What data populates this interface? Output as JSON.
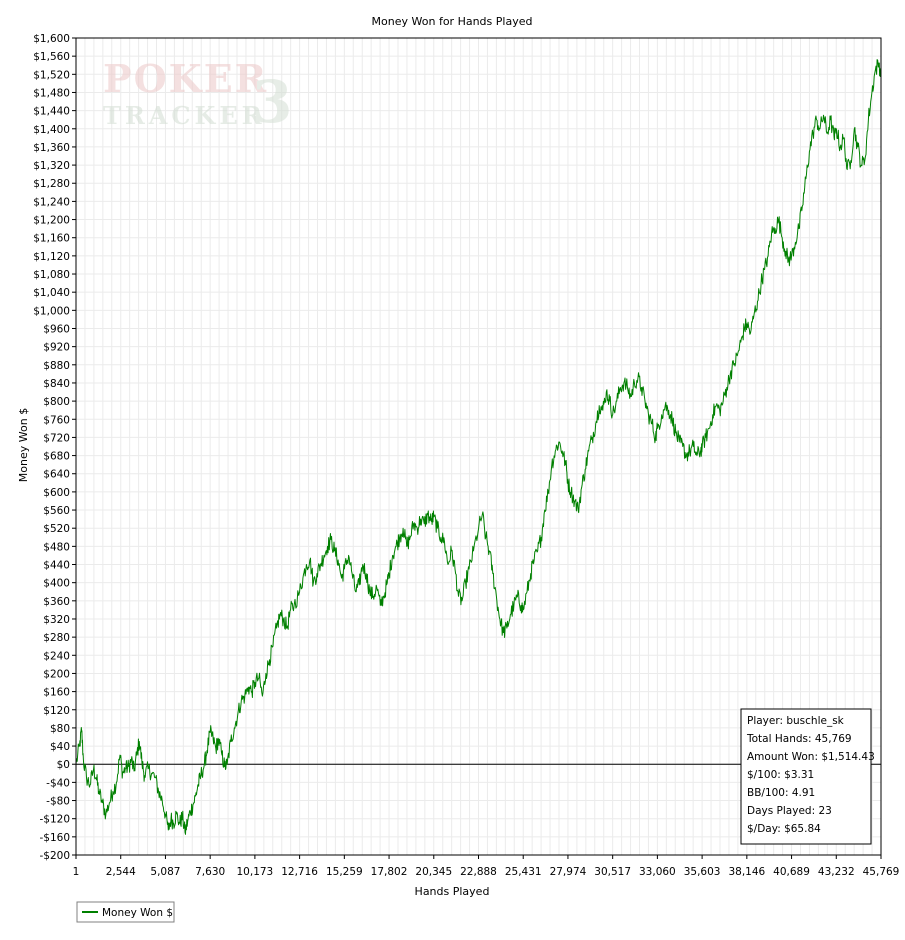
{
  "chart_data": {
    "type": "line",
    "title": "Money Won for Hands Played",
    "xlabel": "Hands Played",
    "ylabel": "Money Won $",
    "xlim": [
      1,
      45769
    ],
    "ylim": [
      -200,
      1600
    ],
    "grid": true,
    "y_tick_step": 40,
    "x_tick_labels": [
      "1",
      "2,544",
      "5,087",
      "7,630",
      "10,173",
      "12,716",
      "15,259",
      "17,802",
      "20,345",
      "22,888",
      "25,431",
      "27,974",
      "30,517",
      "33,060",
      "35,603",
      "38,146",
      "40,689",
      "43,232",
      "45,769"
    ],
    "legend_position": "bottom-left",
    "series": [
      {
        "name": "Money Won $",
        "color": "#008000",
        "points": [
          [
            1,
            0
          ],
          [
            200,
            40
          ],
          [
            320,
            75
          ],
          [
            420,
            10
          ],
          [
            600,
            -30
          ],
          [
            800,
            -45
          ],
          [
            1000,
            -10
          ],
          [
            1150,
            -30
          ],
          [
            1300,
            -60
          ],
          [
            1500,
            -85
          ],
          [
            1700,
            -110
          ],
          [
            1900,
            -85
          ],
          [
            2100,
            -60
          ],
          [
            2300,
            -40
          ],
          [
            2500,
            20
          ],
          [
            2650,
            -20
          ],
          [
            2800,
            -10
          ],
          [
            3000,
            -5
          ],
          [
            3150,
            10
          ],
          [
            3300,
            -15
          ],
          [
            3450,
            20
          ],
          [
            3600,
            50
          ],
          [
            3750,
            5
          ],
          [
            3900,
            -25
          ],
          [
            4100,
            -10
          ],
          [
            4300,
            -20
          ],
          [
            4500,
            -30
          ],
          [
            4700,
            -60
          ],
          [
            4900,
            -80
          ],
          [
            5087,
            -110
          ],
          [
            5250,
            -145
          ],
          [
            5400,
            -120
          ],
          [
            5550,
            -130
          ],
          [
            5700,
            -110
          ],
          [
            5900,
            -130
          ],
          [
            6050,
            -115
          ],
          [
            6200,
            -150
          ],
          [
            6350,
            -125
          ],
          [
            6500,
            -105
          ],
          [
            6650,
            -90
          ],
          [
            6800,
            -70
          ],
          [
            6950,
            -45
          ],
          [
            7100,
            -25
          ],
          [
            7300,
            0
          ],
          [
            7450,
            30
          ],
          [
            7630,
            70
          ],
          [
            7800,
            55
          ],
          [
            7950,
            35
          ],
          [
            8100,
            55
          ],
          [
            8300,
            20
          ],
          [
            8450,
            -5
          ],
          [
            8600,
            0
          ],
          [
            8800,
            50
          ],
          [
            9000,
            80
          ],
          [
            9200,
            110
          ],
          [
            9400,
            140
          ],
          [
            9600,
            150
          ],
          [
            9800,
            170
          ],
          [
            10000,
            160
          ],
          [
            10173,
            180
          ],
          [
            10400,
            190
          ],
          [
            10600,
            150
          ],
          [
            10800,
            200
          ],
          [
            11000,
            230
          ],
          [
            11200,
            260
          ],
          [
            11400,
            300
          ],
          [
            11600,
            330
          ],
          [
            11800,
            320
          ],
          [
            12000,
            300
          ],
          [
            12200,
            340
          ],
          [
            12400,
            350
          ],
          [
            12716,
            380
          ],
          [
            12900,
            410
          ],
          [
            13100,
            440
          ],
          [
            13300,
            450
          ],
          [
            13500,
            400
          ],
          [
            13700,
            420
          ],
          [
            13900,
            440
          ],
          [
            14100,
            460
          ],
          [
            14300,
            480
          ],
          [
            14500,
            495
          ],
          [
            14700,
            470
          ],
          [
            14900,
            450
          ],
          [
            15100,
            410
          ],
          [
            15259,
            430
          ],
          [
            15500,
            460
          ],
          [
            15700,
            420
          ],
          [
            15900,
            380
          ],
          [
            16100,
            395
          ],
          [
            16300,
            440
          ],
          [
            16500,
            420
          ],
          [
            16700,
            380
          ],
          [
            16900,
            370
          ],
          [
            17100,
            390
          ],
          [
            17300,
            350
          ],
          [
            17500,
            370
          ],
          [
            17700,
            400
          ],
          [
            17802,
            420
          ],
          [
            18000,
            460
          ],
          [
            18200,
            480
          ],
          [
            18400,
            500
          ],
          [
            18600,
            520
          ],
          [
            18800,
            480
          ],
          [
            19000,
            500
          ],
          [
            19200,
            530
          ],
          [
            19400,
            520
          ],
          [
            19600,
            540
          ],
          [
            19800,
            530
          ],
          [
            20000,
            550
          ],
          [
            20200,
            535
          ],
          [
            20345,
            545
          ],
          [
            20550,
            520
          ],
          [
            20750,
            500
          ],
          [
            20950,
            490
          ],
          [
            21150,
            440
          ],
          [
            21350,
            470
          ],
          [
            21550,
            430
          ],
          [
            21750,
            370
          ],
          [
            21950,
            360
          ],
          [
            22150,
            400
          ],
          [
            22350,
            430
          ],
          [
            22600,
            470
          ],
          [
            22888,
            520
          ],
          [
            23100,
            550
          ],
          [
            23300,
            500
          ],
          [
            23500,
            470
          ],
          [
            23700,
            420
          ],
          [
            23900,
            370
          ],
          [
            24100,
            320
          ],
          [
            24300,
            290
          ],
          [
            24500,
            300
          ],
          [
            24700,
            330
          ],
          [
            24900,
            350
          ],
          [
            25100,
            370
          ],
          [
            25300,
            350
          ],
          [
            25431,
            340
          ],
          [
            25650,
            380
          ],
          [
            25850,
            420
          ],
          [
            26050,
            450
          ],
          [
            26250,
            470
          ],
          [
            26450,
            500
          ],
          [
            26650,
            560
          ],
          [
            26850,
            600
          ],
          [
            27050,
            660
          ],
          [
            27250,
            690
          ],
          [
            27450,
            710
          ],
          [
            27650,
            690
          ],
          [
            27850,
            660
          ],
          [
            27974,
            620
          ],
          [
            28150,
            600
          ],
          [
            28350,
            580
          ],
          [
            28550,
            560
          ],
          [
            28750,
            610
          ],
          [
            28950,
            650
          ],
          [
            29150,
            690
          ],
          [
            29350,
            720
          ],
          [
            29550,
            750
          ],
          [
            29750,
            790
          ],
          [
            29950,
            780
          ],
          [
            30150,
            820
          ],
          [
            30350,
            800
          ],
          [
            30517,
            770
          ],
          [
            30750,
            800
          ],
          [
            30950,
            830
          ],
          [
            31150,
            840
          ],
          [
            31350,
            830
          ],
          [
            31550,
            810
          ],
          [
            31750,
            840
          ],
          [
            31950,
            850
          ],
          [
            32150,
            830
          ],
          [
            32350,
            800
          ],
          [
            32550,
            770
          ],
          [
            32750,
            750
          ],
          [
            32950,
            720
          ],
          [
            33060,
            740
          ],
          [
            33300,
            770
          ],
          [
            33500,
            790
          ],
          [
            33700,
            780
          ],
          [
            33900,
            760
          ],
          [
            34100,
            730
          ],
          [
            34300,
            710
          ],
          [
            34500,
            700
          ],
          [
            34700,
            680
          ],
          [
            34900,
            690
          ],
          [
            35100,
            700
          ],
          [
            35300,
            680
          ],
          [
            35500,
            690
          ],
          [
            35603,
            700
          ],
          [
            35800,
            720
          ],
          [
            36000,
            740
          ],
          [
            36200,
            770
          ],
          [
            36400,
            790
          ],
          [
            36600,
            780
          ],
          [
            36800,
            800
          ],
          [
            37000,
            830
          ],
          [
            37200,
            860
          ],
          [
            37400,
            880
          ],
          [
            37600,
            900
          ],
          [
            37800,
            930
          ],
          [
            38000,
            960
          ],
          [
            38146,
            970
          ],
          [
            38350,
            950
          ],
          [
            38550,
            990
          ],
          [
            38750,
            1020
          ],
          [
            38950,
            1060
          ],
          [
            39150,
            1090
          ],
          [
            39350,
            1120
          ],
          [
            39550,
            1170
          ],
          [
            39750,
            1180
          ],
          [
            39950,
            1200
          ],
          [
            40150,
            1160
          ],
          [
            40350,
            1130
          ],
          [
            40500,
            1110
          ],
          [
            40689,
            1120
          ],
          [
            40900,
            1150
          ],
          [
            41100,
            1180
          ],
          [
            41300,
            1230
          ],
          [
            41500,
            1290
          ],
          [
            41700,
            1350
          ],
          [
            41900,
            1390
          ],
          [
            42100,
            1420
          ],
          [
            42300,
            1400
          ],
          [
            42500,
            1430
          ],
          [
            42700,
            1390
          ],
          [
            42900,
            1420
          ],
          [
            43100,
            1380
          ],
          [
            43232,
            1400
          ],
          [
            43450,
            1360
          ],
          [
            43650,
            1380
          ],
          [
            43850,
            1310
          ],
          [
            44050,
            1330
          ],
          [
            44250,
            1400
          ],
          [
            44450,
            1360
          ],
          [
            44650,
            1320
          ],
          [
            44850,
            1330
          ],
          [
            45050,
            1420
          ],
          [
            45250,
            1480
          ],
          [
            45450,
            1530
          ],
          [
            45650,
            1545
          ],
          [
            45769,
            1514.43
          ]
        ]
      }
    ],
    "stats_box": [
      "Player: buschle_sk",
      "Total Hands: 45,769",
      "Amount Won: $1,514.43",
      "$/100: $3.31",
      "BB/100: 4.91",
      "Days Played: 23",
      "$/Day: $65.84"
    ]
  },
  "watermark": {
    "line1": "POKER",
    "line2": "TRACKER",
    "digit": "3"
  },
  "colors": {
    "series": "#008000",
    "grid": "#ebebeb",
    "axis": "#000000"
  }
}
